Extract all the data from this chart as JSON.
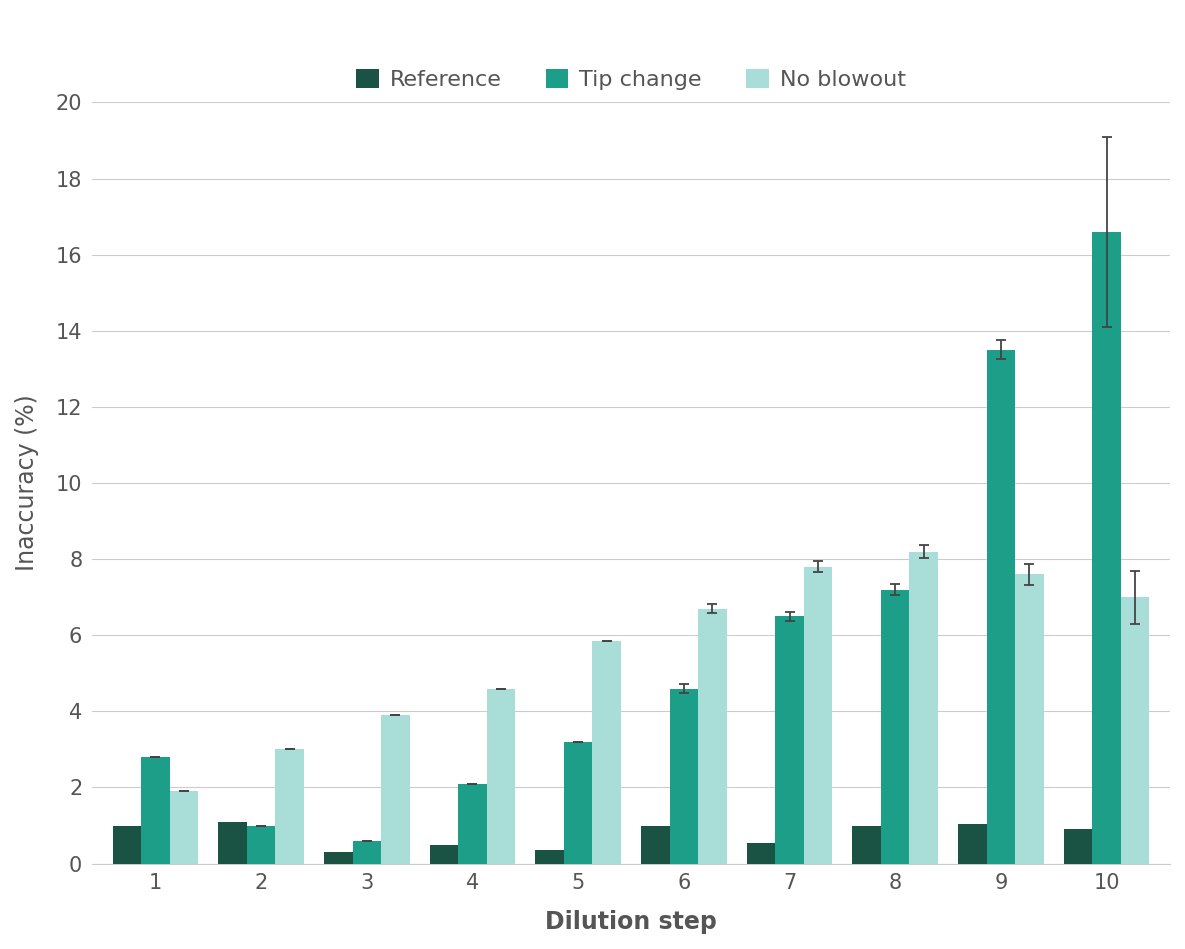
{
  "categories": [
    1,
    2,
    3,
    4,
    5,
    6,
    7,
    8,
    9,
    10
  ],
  "reference": [
    1.0,
    1.1,
    0.3,
    0.5,
    0.35,
    1.0,
    0.55,
    1.0,
    1.05,
    0.9
  ],
  "tip_change": [
    2.8,
    1.0,
    0.6,
    2.1,
    3.2,
    4.6,
    6.5,
    7.2,
    13.5,
    16.6
  ],
  "no_blowout": [
    1.9,
    3.0,
    3.9,
    4.6,
    5.85,
    6.7,
    7.8,
    8.2,
    7.6,
    7.0
  ],
  "tip_change_err": [
    0.0,
    0.0,
    0.0,
    0.0,
    0.0,
    0.12,
    0.12,
    0.15,
    0.25,
    2.5
  ],
  "no_blowout_err": [
    0.0,
    0.0,
    0.0,
    0.0,
    0.0,
    0.12,
    0.15,
    0.18,
    0.28,
    0.7
  ],
  "colors": {
    "reference": "#1a5244",
    "tip_change": "#1d9e88",
    "no_blowout": "#a8ddd8"
  },
  "title": "",
  "xlabel": "Dilution step",
  "ylabel": "Inaccuracy (%)",
  "ylim": [
    0,
    20
  ],
  "yticks": [
    0,
    2,
    4,
    6,
    8,
    10,
    12,
    14,
    16,
    18,
    20
  ],
  "legend_labels": [
    "Reference",
    "Tip change",
    "No blowout"
  ],
  "background_color": "#ffffff",
  "plot_bg_color": "#ffffff",
  "bar_width": 0.27,
  "xlabel_fontsize": 17,
  "ylabel_fontsize": 17,
  "tick_fontsize": 15,
  "legend_fontsize": 16,
  "text_color": "#555555",
  "grid_color": "#cccccc",
  "error_color": "#444444"
}
